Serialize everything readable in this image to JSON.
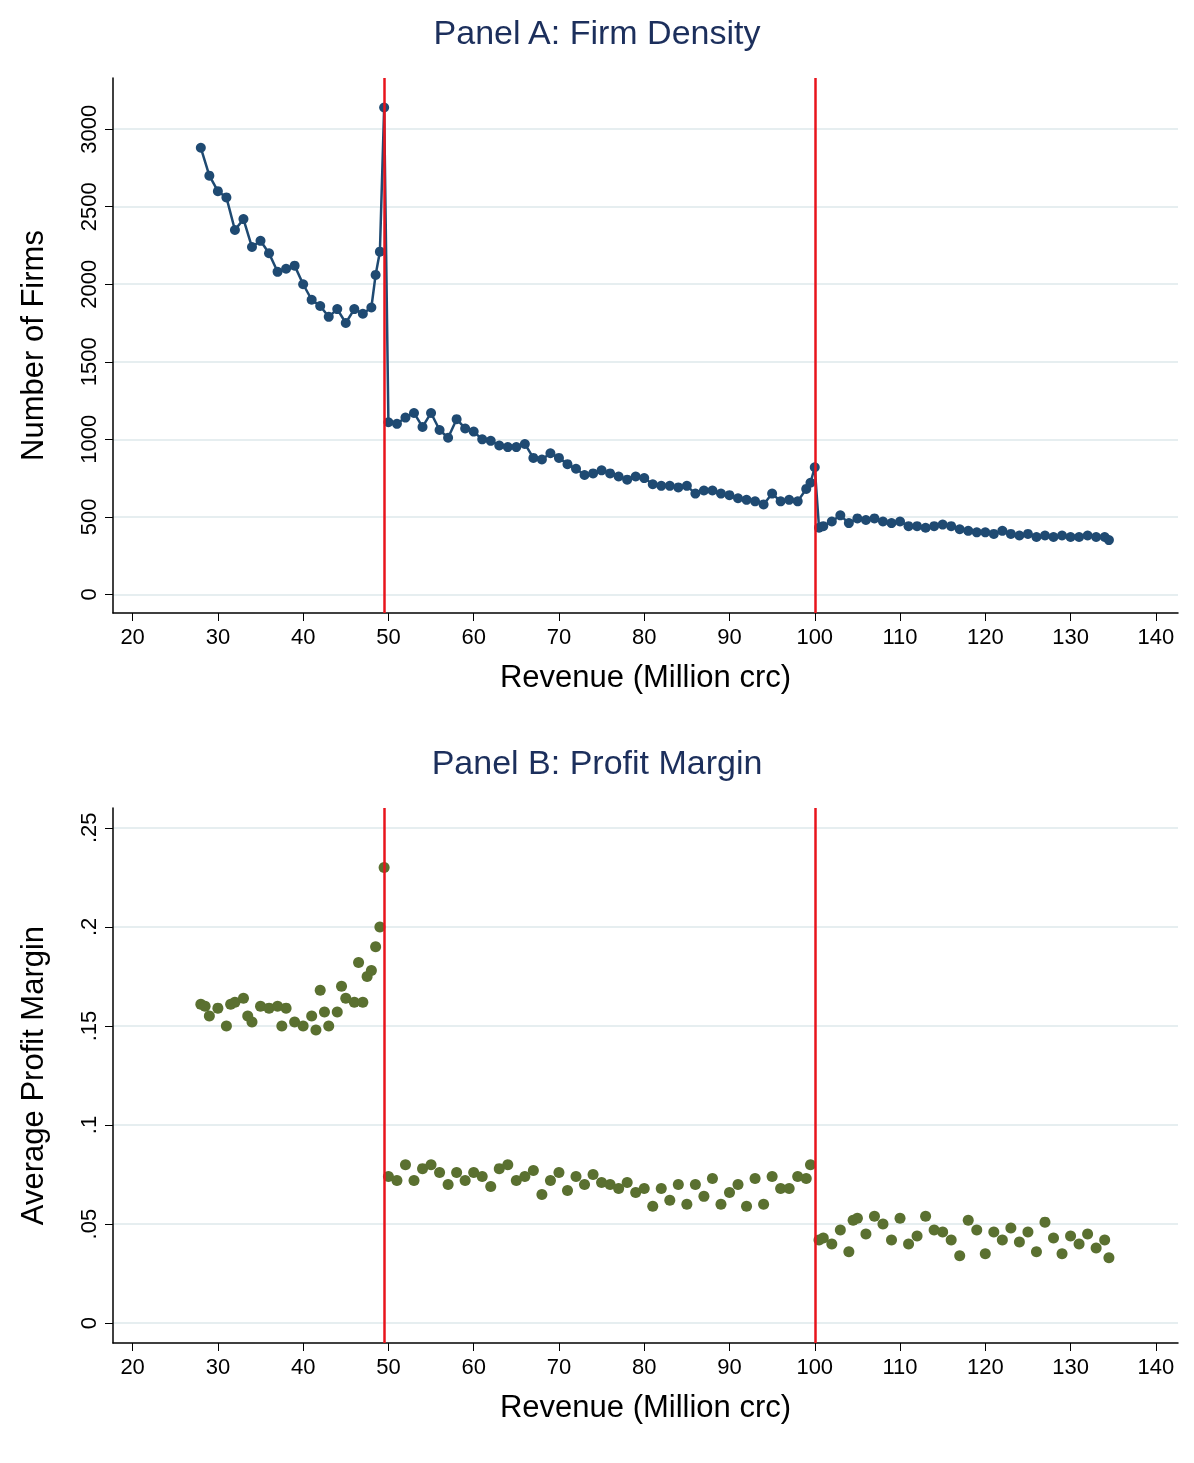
{
  "chart_data": [
    {
      "type": "line",
      "title": "Panel A: Firm Density",
      "xlabel": "Revenue (Million crc)",
      "ylabel": "Number of Firms",
      "marker": "circle",
      "line_style": "solid",
      "grid": "y",
      "xlim": [
        17.7,
        142.6
      ],
      "xticks": [
        20,
        30,
        40,
        50,
        60,
        70,
        80,
        90,
        100,
        110,
        120,
        130,
        140
      ],
      "ylim": [
        -120,
        3330
      ],
      "yticks": [
        0,
        500,
        1000,
        1500,
        2000,
        2500,
        3000
      ],
      "x": [
        28,
        29,
        30,
        31,
        32,
        33,
        34,
        35,
        36,
        37,
        38,
        39,
        40,
        41,
        42,
        43,
        44,
        45,
        46,
        47,
        48,
        48.5,
        49,
        49.5,
        50,
        51,
        52,
        53,
        54,
        55,
        56,
        57,
        58,
        59,
        60,
        61,
        62,
        63,
        64,
        65,
        66,
        67,
        68,
        69,
        70,
        71,
        72,
        73,
        74,
        75,
        76,
        77,
        78,
        79,
        80,
        81,
        82,
        83,
        84,
        85,
        86,
        87,
        88,
        89,
        90,
        91,
        92,
        93,
        94,
        95,
        96,
        97,
        98,
        99,
        99.5,
        100,
        100.5,
        101,
        102,
        103,
        104,
        105,
        106,
        107,
        108,
        109,
        110,
        111,
        112,
        113,
        114,
        115,
        116,
        117,
        118,
        119,
        120,
        121,
        122,
        123,
        124,
        125,
        126,
        127,
        128,
        129,
        130,
        131,
        132,
        133,
        134,
        134.5
      ],
      "series": [
        {
          "color": "#1f4a72",
          "values": [
            2880,
            2700,
            2600,
            2560,
            2350,
            2420,
            2240,
            2280,
            2200,
            2080,
            2100,
            2120,
            2000,
            1900,
            1860,
            1790,
            1840,
            1750,
            1840,
            1810,
            1850,
            2060,
            2210,
            3140,
            1110,
            1100,
            1140,
            1170,
            1080,
            1170,
            1060,
            1010,
            1130,
            1070,
            1050,
            1000,
            990,
            960,
            950,
            950,
            970,
            880,
            870,
            910,
            880,
            840,
            810,
            770,
            780,
            800,
            780,
            760,
            740,
            760,
            750,
            710,
            700,
            700,
            690,
            700,
            650,
            670,
            670,
            650,
            640,
            620,
            610,
            600,
            580,
            650,
            600,
            610,
            600,
            680,
            720,
            820,
            430,
            440,
            470,
            510,
            460,
            490,
            480,
            490,
            470,
            460,
            470,
            440,
            440,
            430,
            440,
            450,
            440,
            420,
            410,
            400,
            400,
            390,
            410,
            390,
            380,
            390,
            370,
            380,
            370,
            380,
            370,
            370,
            380,
            370,
            370,
            350
          ]
        }
      ],
      "ref_lines": [
        {
          "axis": "x",
          "value": 49.5,
          "color": "#e8141c"
        },
        {
          "axis": "x",
          "value": 100,
          "color": "#e8141c"
        }
      ]
    },
    {
      "type": "scatter",
      "title": "Panel B: Profit Margin",
      "xlabel": "Revenue (Million crc)",
      "ylabel": "Average Profit Margin",
      "marker": "circle",
      "grid": "y",
      "xlim": [
        17.7,
        142.6
      ],
      "xticks": [
        20,
        30,
        40,
        50,
        60,
        70,
        80,
        90,
        100,
        110,
        120,
        130,
        140
      ],
      "ylim": [
        -0.01,
        0.26
      ],
      "yticks": [
        0,
        {
          "value": 0.05,
          "label": ".05"
        },
        {
          "value": 0.1,
          "label": ".1"
        },
        {
          "value": 0.15,
          "label": ".15"
        },
        {
          "value": 0.2,
          "label": ".2"
        },
        {
          "value": 0.25,
          "label": ".25"
        }
      ],
      "x": [
        28,
        28.5,
        29,
        30,
        31,
        31.5,
        32,
        33,
        33.5,
        34,
        35,
        36,
        37,
        37.5,
        38,
        39,
        40,
        41,
        41.5,
        42,
        42.5,
        43,
        44,
        44.5,
        45,
        46,
        46.5,
        47,
        47.5,
        48,
        48.5,
        49,
        49.5,
        50,
        51,
        52,
        53,
        54,
        55,
        56,
        57,
        58,
        59,
        60,
        61,
        62,
        63,
        64,
        65,
        66,
        67,
        68,
        69,
        70,
        71,
        72,
        73,
        74,
        75,
        76,
        77,
        78,
        79,
        80,
        81,
        82,
        83,
        84,
        85,
        86,
        87,
        88,
        89,
        90,
        91,
        92,
        93,
        94,
        95,
        96,
        97,
        98,
        99,
        99.5,
        100.5,
        101,
        102,
        103,
        104,
        104.5,
        105,
        106,
        107,
        108,
        109,
        110,
        111,
        112,
        113,
        114,
        115,
        116,
        117,
        118,
        119,
        120,
        121,
        122,
        123,
        124,
        125,
        126,
        127,
        128,
        129,
        130,
        131,
        132,
        133,
        134,
        134.5
      ],
      "series": [
        {
          "color": "#5a7030",
          "values": [
            0.161,
            0.16,
            0.155,
            0.159,
            0.15,
            0.161,
            0.162,
            0.164,
            0.155,
            0.152,
            0.16,
            0.159,
            0.16,
            0.15,
            0.159,
            0.152,
            0.15,
            0.155,
            0.148,
            0.168,
            0.157,
            0.15,
            0.157,
            0.17,
            0.164,
            0.162,
            0.182,
            0.162,
            0.175,
            0.178,
            0.19,
            0.2,
            0.23,
            0.074,
            0.072,
            0.08,
            0.072,
            0.078,
            0.08,
            0.076,
            0.07,
            0.076,
            0.072,
            0.076,
            0.074,
            0.069,
            0.078,
            0.08,
            0.072,
            0.074,
            0.077,
            0.065,
            0.072,
            0.076,
            0.067,
            0.074,
            0.07,
            0.075,
            0.071,
            0.07,
            0.068,
            0.071,
            0.066,
            0.068,
            0.059,
            0.068,
            0.062,
            0.07,
            0.06,
            0.07,
            0.064,
            0.073,
            0.06,
            0.066,
            0.07,
            0.059,
            0.073,
            0.06,
            0.074,
            0.068,
            0.068,
            0.074,
            0.073,
            0.08,
            0.042,
            0.043,
            0.04,
            0.047,
            0.036,
            0.052,
            0.053,
            0.045,
            0.054,
            0.05,
            0.042,
            0.053,
            0.04,
            0.044,
            0.054,
            0.047,
            0.046,
            0.042,
            0.034,
            0.052,
            0.047,
            0.035,
            0.046,
            0.042,
            0.048,
            0.041,
            0.046,
            0.036,
            0.051,
            0.043,
            0.035,
            0.044,
            0.04,
            0.045,
            0.038,
            0.042,
            0.033
          ]
        }
      ],
      "ref_lines": [
        {
          "axis": "x",
          "value": 49.5,
          "color": "#e8141c"
        },
        {
          "axis": "x",
          "value": 100,
          "color": "#e8141c"
        }
      ]
    }
  ]
}
